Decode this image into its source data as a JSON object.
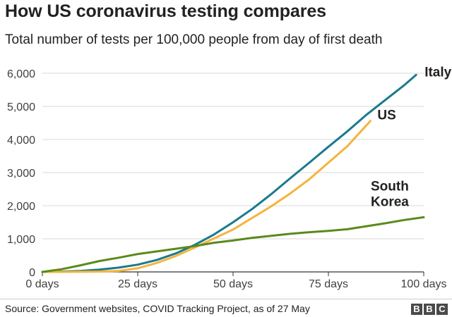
{
  "header": {
    "title": "How US coronavirus testing compares",
    "subtitle": "Total number of tests per 100,000 people from day of first death"
  },
  "footer": {
    "source": "Source: Government websites, COVID Tracking Project, as of 27 May",
    "logo_letters": [
      "B",
      "B",
      "C"
    ]
  },
  "colors": {
    "italy": "#1a7a8c",
    "us": "#f5b43c",
    "south_korea": "#5a8a1a",
    "grid": "#d9d9d9",
    "axis": "#333333"
  },
  "chart_data": {
    "type": "line",
    "title": "How US coronavirus testing compares",
    "subtitle": "Total number of tests per 100,000 people from day of first death",
    "xlabel": "",
    "ylabel": "",
    "xlim": [
      0,
      100
    ],
    "ylim": [
      0,
      6000
    ],
    "x_ticks": [
      0,
      25,
      50,
      75,
      100
    ],
    "x_tick_labels": [
      "0 days",
      "25 days",
      "50 days",
      "75 days",
      "100 days"
    ],
    "y_ticks": [
      0,
      1000,
      2000,
      3000,
      4000,
      5000,
      6000
    ],
    "y_tick_labels": [
      "0",
      "1,000",
      "2,000",
      "3,000",
      "4,000",
      "5,000",
      "6,000"
    ],
    "grid": "horizontal",
    "legend": "direct labels at line ends",
    "series": [
      {
        "name": "Italy",
        "label_lines": [
          "Italy"
        ],
        "color_key": "italy",
        "x": [
          0,
          5,
          10,
          15,
          20,
          25,
          30,
          35,
          40,
          45,
          50,
          55,
          60,
          65,
          70,
          75,
          80,
          85,
          90,
          95,
          98
        ],
        "y": [
          0,
          10,
          30,
          70,
          130,
          220,
          360,
          560,
          820,
          1130,
          1500,
          1900,
          2350,
          2830,
          3300,
          3780,
          4250,
          4750,
          5200,
          5650,
          5950
        ]
      },
      {
        "name": "US",
        "label_lines": [
          "US"
        ],
        "color_key": "us",
        "x": [
          0,
          5,
          10,
          15,
          20,
          25,
          30,
          35,
          40,
          45,
          50,
          55,
          60,
          65,
          70,
          75,
          80,
          86
        ],
        "y": [
          0,
          0,
          5,
          10,
          30,
          110,
          270,
          480,
          740,
          1010,
          1280,
          1630,
          1980,
          2370,
          2800,
          3300,
          3800,
          4560
        ]
      },
      {
        "name": "South Korea",
        "label_lines": [
          "South",
          "Korea"
        ],
        "color_key": "south_korea",
        "x": [
          0,
          5,
          10,
          15,
          20,
          25,
          30,
          35,
          40,
          45,
          50,
          55,
          60,
          65,
          70,
          75,
          80,
          85,
          90,
          95,
          100
        ],
        "y": [
          0,
          80,
          200,
          330,
          430,
          540,
          620,
          700,
          780,
          880,
          950,
          1030,
          1090,
          1150,
          1200,
          1240,
          1290,
          1380,
          1470,
          1570,
          1650
        ]
      }
    ]
  }
}
